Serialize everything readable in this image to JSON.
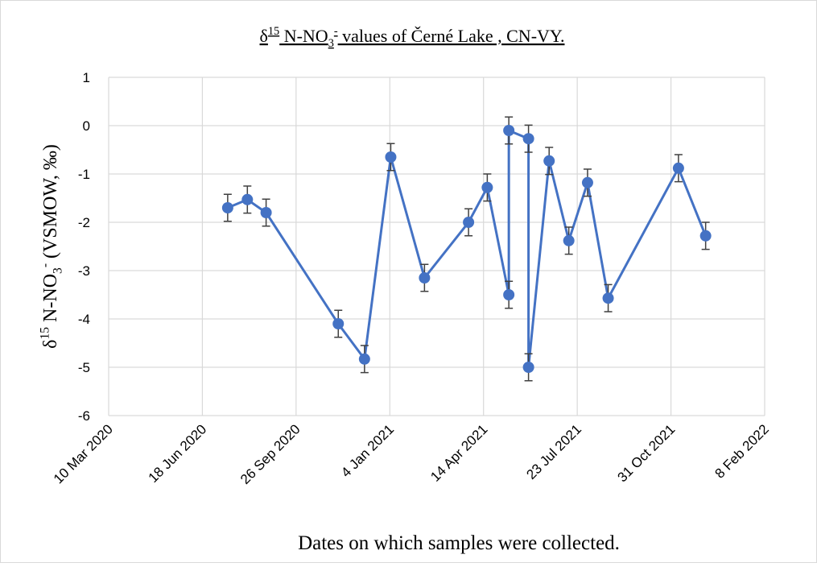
{
  "chart_data": {
    "type": "line",
    "title": [
      "δ",
      "15",
      " N-NO",
      "3",
      "-",
      " values of  Černé Lake , CN-VY."
    ],
    "x_label": "Dates on which samples were collected.",
    "y_label": [
      "δ",
      "15",
      " N-NO",
      "3",
      "-",
      " (VSMOW, ‰)"
    ],
    "x": [
      "2020-07-15",
      "2020-08-05",
      "2020-08-25",
      "2020-11-10",
      "2020-12-08",
      "2021-01-05",
      "2021-02-10",
      "2021-03-29",
      "2021-04-18",
      "2021-05-11",
      "2021-05-11",
      "2021-06-01",
      "2021-06-01",
      "2021-06-23",
      "2021-07-14",
      "2021-08-03",
      "2021-08-25",
      "2021-11-08",
      "2021-12-07"
    ],
    "series": [
      {
        "name": "δ15N-NO3",
        "color": "#4472c4",
        "values": [
          -1.7,
          -1.53,
          -1.8,
          -4.1,
          -4.83,
          -0.65,
          -3.15,
          -2.0,
          -1.28,
          -3.5,
          -0.1,
          -0.27,
          -5.0,
          -0.73,
          -2.38,
          -1.18,
          -3.57,
          -0.88,
          -2.28
        ],
        "errors": [
          0.28,
          0.28,
          0.28,
          0.28,
          0.28,
          0.28,
          0.28,
          0.28,
          0.28,
          0.28,
          0.28,
          0.28,
          0.28,
          0.28,
          0.28,
          0.28,
          0.28,
          0.28,
          0.28
        ]
      }
    ],
    "xlim": [
      "2020-03-10",
      "2022-02-08"
    ],
    "xticks": [
      {
        "value": "2020-03-10",
        "label": "10 Mar 2020"
      },
      {
        "value": "2020-06-18",
        "label": "18 Jun 2020"
      },
      {
        "value": "2020-09-26",
        "label": "26 Sep 2020"
      },
      {
        "value": "2021-01-04",
        "label": "4 Jan 2021"
      },
      {
        "value": "2021-04-14",
        "label": "14 Apr 2021"
      },
      {
        "value": "2021-07-23",
        "label": "23 Jul 2021"
      },
      {
        "value": "2021-10-31",
        "label": "31 Oct 2021"
      },
      {
        "value": "2022-02-08",
        "label": "8 Feb 2022"
      }
    ],
    "ylim": [
      -6,
      1
    ],
    "yticks": [
      -6,
      -5,
      -4,
      -3,
      -2,
      -1,
      0,
      1
    ],
    "grid": true
  }
}
